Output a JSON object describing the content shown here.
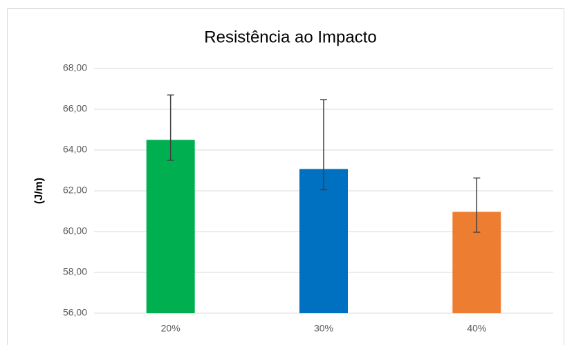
{
  "chart_data": {
    "type": "bar",
    "title": "Resistência ao Impacto",
    "y_label": "(J/m)",
    "categories": [
      "20%",
      "30%",
      "40%"
    ],
    "values": [
      64.5,
      63.07,
      60.97
    ],
    "error_plus": [
      2.2,
      3.4,
      1.66
    ],
    "error_minus": [
      1.0,
      1.02,
      1.0
    ],
    "colors": [
      "#00b050",
      "#0070c0",
      "#ed7d31"
    ],
    "error_color": "#404040",
    "ylim": [
      56,
      68
    ],
    "yticks": [
      {
        "value": 56,
        "label": "56,00"
      },
      {
        "value": 58,
        "label": "58,00"
      },
      {
        "value": 60,
        "label": "60,00"
      },
      {
        "value": 62,
        "label": "62,00"
      },
      {
        "value": 64,
        "label": "64,00"
      },
      {
        "value": 66,
        "label": "66,00"
      },
      {
        "value": 68,
        "label": "68,00"
      }
    ],
    "grid": true
  }
}
